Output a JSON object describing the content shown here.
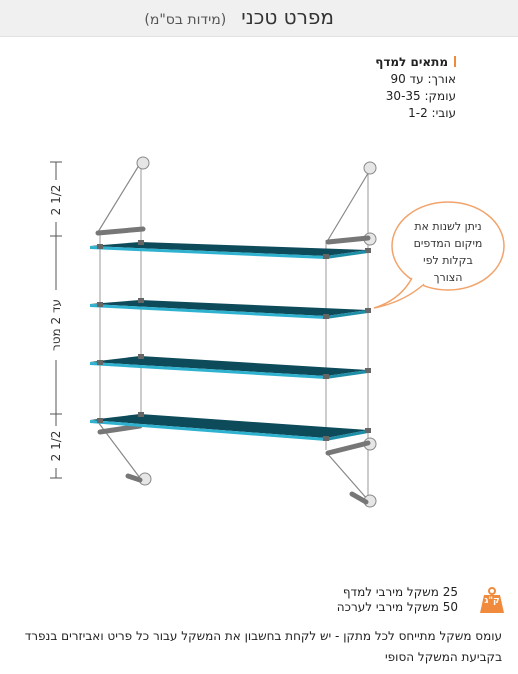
{
  "header": {
    "title": "מפרט טכני",
    "subtitle": "(מידות בס\"מ)"
  },
  "specs": {
    "heading": "מתאים למדף",
    "rows": [
      {
        "label": "אורך:",
        "value": "עד 90"
      },
      {
        "label": "עומק:",
        "value": "30-35"
      },
      {
        "label": "עובי:",
        "value": "1-2"
      }
    ]
  },
  "diagram": {
    "callout_lines": [
      "ניתן לשנות את",
      "מיקום המדפים",
      "בקלות לפי",
      "הצורך"
    ],
    "dimension_top": "2 1/2",
    "dimension_middle": "עד 2 מטר",
    "dimension_bottom": "2 1/2"
  },
  "weights": {
    "icon_label": "ק\"ג",
    "per_shelf": "25 משקל מירבי למדף",
    "per_set": "50 משקל מירבי לערכה"
  },
  "note": "עומס משקל מתייחס לכל מתקן - יש לקחת בחשבון את המשקל עבור כל פריט ואביזרים בנפרד בקביעת המשקל הסופי",
  "colors": {
    "accent": "#f08a3c",
    "shelf_top": "#0d4a5a",
    "shelf_edge": "#2fb2cf",
    "cable": "#8a8a8a",
    "header_bg": "#f0f0f0"
  },
  "icons": [
    "weight-icon",
    "callout-bubble",
    "wall-anchor",
    "shelf-clamp"
  ]
}
